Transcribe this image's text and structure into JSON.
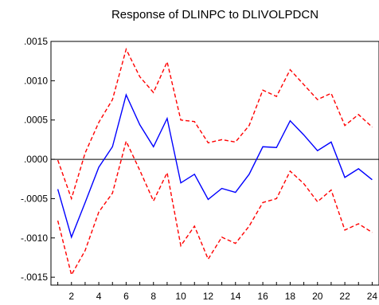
{
  "chart_data": {
    "type": "line",
    "title": "Response of DLINPC to DLIVOLPDCN",
    "xlabel": "",
    "ylabel": "",
    "x": [
      1,
      2,
      3,
      4,
      5,
      6,
      7,
      8,
      9,
      10,
      11,
      12,
      13,
      14,
      15,
      16,
      17,
      18,
      19,
      20,
      21,
      22,
      23,
      24
    ],
    "x_ticks": [
      2,
      4,
      6,
      8,
      10,
      12,
      14,
      16,
      18,
      20,
      22,
      24
    ],
    "x_tick_labels": [
      "2",
      "4",
      "6",
      "8",
      "10",
      "12",
      "14",
      "16",
      "18",
      "20",
      "22",
      "24"
    ],
    "xlim": [
      0.5,
      24.5
    ],
    "ylim": [
      -0.0016,
      0.0015
    ],
    "y_ticks": [
      0.0015,
      0.001,
      0.0005,
      0.0,
      -0.0005,
      -0.001,
      -0.0015
    ],
    "y_tick_labels": [
      ".0015",
      ".0010",
      ".0005",
      ".0000",
      "-.0005",
      "-.0010",
      "-.0015"
    ],
    "grid": false,
    "zero_line": true,
    "series": [
      {
        "role": "response",
        "color": "#0000ff",
        "dash": "solid",
        "values": [
          -0.00038,
          -0.00099,
          -0.00055,
          -0.0001,
          0.00016,
          0.00082,
          0.00044,
          0.00016,
          0.00052,
          -0.0003,
          -0.00019,
          -0.00051,
          -0.00037,
          -0.00042,
          -0.00019,
          0.00016,
          0.00015,
          0.00049,
          0.00031,
          0.00011,
          0.00022,
          -0.00023,
          -0.00012,
          -0.00026
        ]
      },
      {
        "role": "upper-band",
        "color": "#ff0000",
        "dash": "dashed",
        "values": [
          -1e-05,
          -0.0005,
          8e-05,
          0.00047,
          0.00076,
          0.0014,
          0.00105,
          0.00085,
          0.00124,
          0.0005,
          0.00048,
          0.00021,
          0.00025,
          0.00022,
          0.00043,
          0.00088,
          0.0008,
          0.00114,
          0.00095,
          0.00076,
          0.00084,
          0.00043,
          0.00057,
          0.00041
        ]
      },
      {
        "role": "lower-band",
        "color": "#ff0000",
        "dash": "dashed",
        "values": [
          -0.00078,
          -0.00147,
          -0.00116,
          -0.00067,
          -0.00043,
          0.00023,
          -0.00014,
          -0.00053,
          -0.00017,
          -0.0011,
          -0.00085,
          -0.00127,
          -0.00099,
          -0.00107,
          -0.00085,
          -0.00055,
          -0.0005,
          -0.00015,
          -0.00031,
          -0.00054,
          -0.00039,
          -0.0009,
          -0.00082,
          -0.00093
        ]
      }
    ]
  }
}
